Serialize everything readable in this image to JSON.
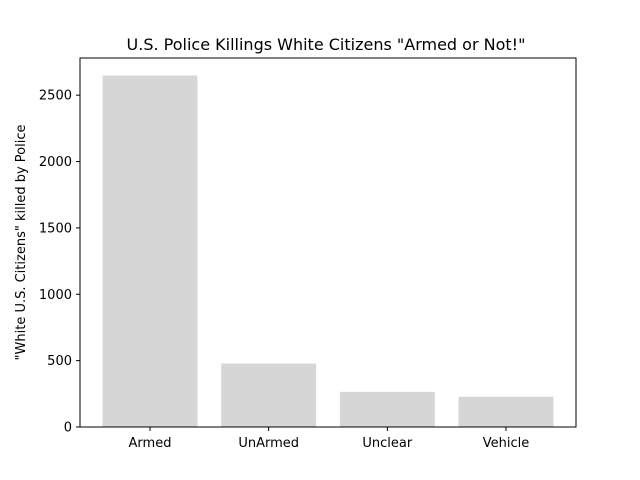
{
  "chart_data": {
    "type": "bar",
    "title": "U.S. Police Killings White Citizens \"Armed or Not!\"",
    "xlabel": "",
    "ylabel": "\"White U.S. Citizens\" killed by Police",
    "categories": [
      "Armed",
      "UnArmed",
      "Unclear",
      "Vehicle"
    ],
    "values": [
      2648,
      478,
      265,
      228
    ],
    "ylim": [
      0,
      2780
    ],
    "yticks": [
      0,
      500,
      1000,
      1500,
      2000,
      2500
    ],
    "bar_color": "#d6d6d6",
    "grid": false,
    "legend": "none"
  }
}
